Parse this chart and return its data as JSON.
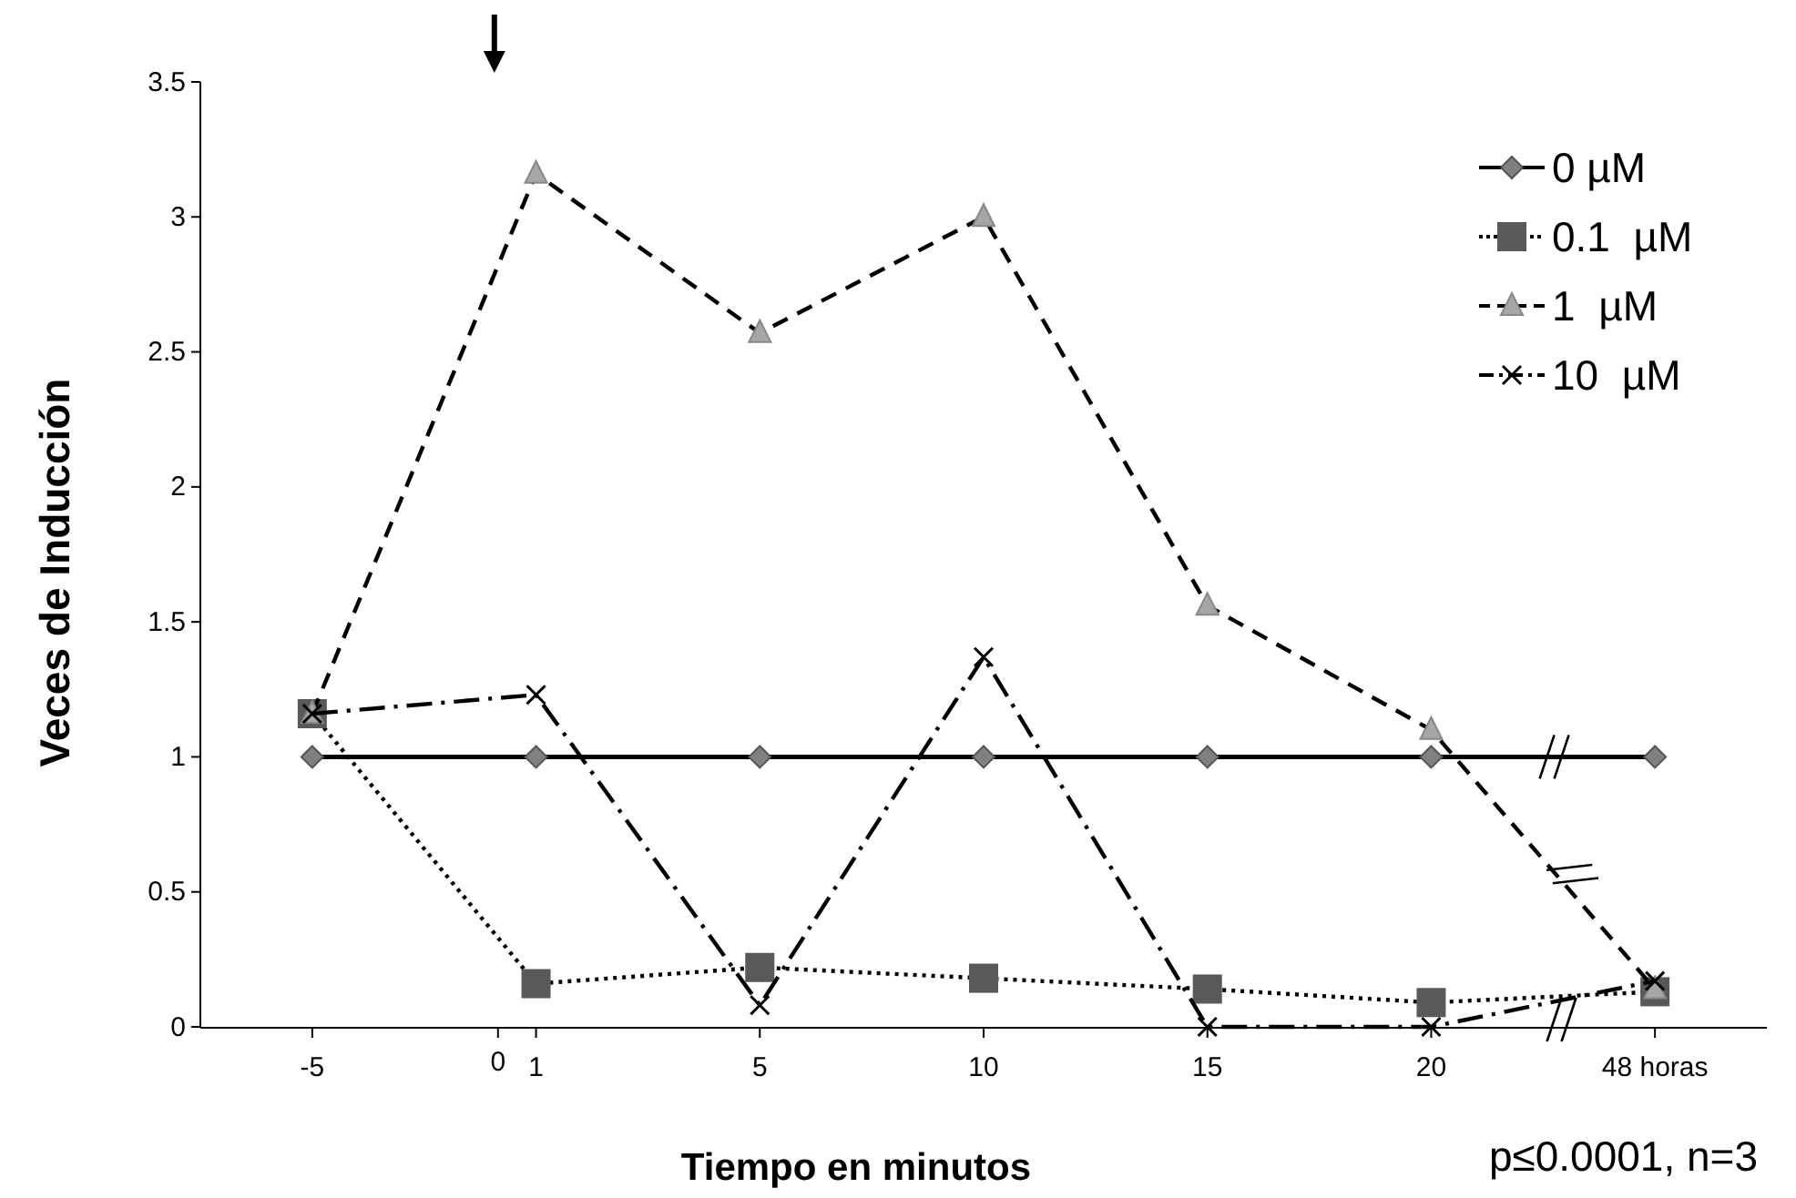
{
  "chart_data": {
    "type": "line",
    "xlabel": "Tiempo en minutos",
    "ylabel": "Veces de Inducción",
    "categories": [
      "-5",
      "1",
      "5",
      "10",
      "15",
      "20",
      "48 horas"
    ],
    "ylim": [
      0,
      3.5
    ],
    "yticks": [
      0,
      0.5,
      1,
      1.5,
      2,
      2.5,
      3,
      3.5
    ],
    "grid": false,
    "legend": "top right",
    "annotations": [
      "0",
      "p≤0.0001, n=3"
    ],
    "series": [
      {
        "name": "0 µM",
        "color": "#808080",
        "marker": "diamond",
        "line_style": "solid",
        "values": [
          1,
          1,
          1,
          1,
          1,
          1,
          1
        ]
      },
      {
        "name": "0.1  µM",
        "color": "#595959",
        "marker": "square",
        "line_style": "dotted",
        "values": [
          1.16,
          0.16,
          0.22,
          0.18,
          0.14,
          0.09,
          0.13
        ]
      },
      {
        "name": "1  µM",
        "color": "#a6a6a6",
        "marker": "triangle",
        "line_style": "dashed",
        "values": [
          1.16,
          3.16,
          2.57,
          3.0,
          1.56,
          1.1,
          0.14
        ]
      },
      {
        "name": "10  µM",
        "color": "#000000",
        "marker": "cross",
        "line_style": "dashdot",
        "values": [
          1.16,
          1.23,
          0.08,
          1.37,
          0,
          0,
          0.17
        ]
      }
    ]
  }
}
